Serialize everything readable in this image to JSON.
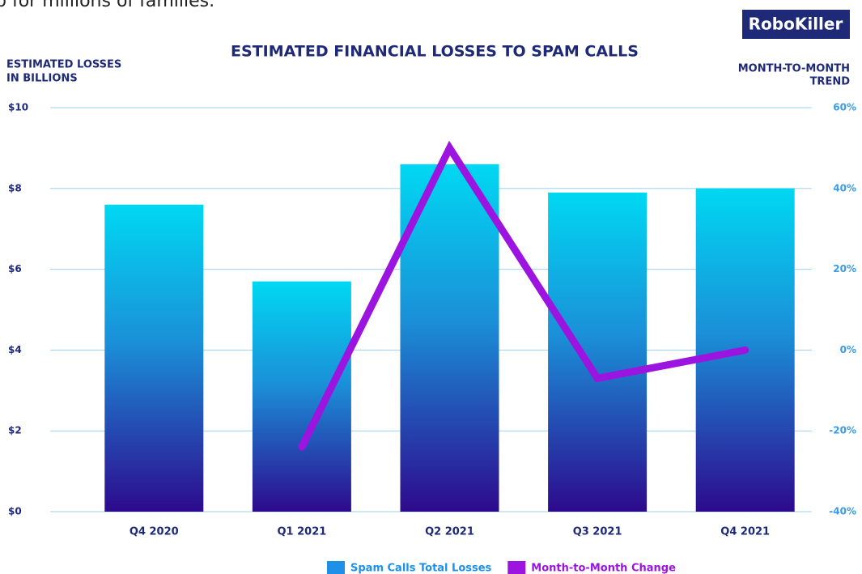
{
  "chart_data": {
    "type": "bar-line",
    "annotation": "p for millions of families.",
    "brand": "RoboKiller",
    "title": "ESTIMATED FINANCIAL LOSSES TO SPAM CALLS",
    "y_label": [
      "ESTIMATED LOSSES",
      "IN BILLIONS"
    ],
    "y2_label": [
      "MONTH-TO-MONTH",
      "TREND"
    ],
    "categories": [
      "Q4 2020",
      "Q1 2021",
      "Q2 2021",
      "Q3 2021",
      "Q4 2021"
    ],
    "series": [
      {
        "name": "Spam Calls Total Losses",
        "type": "bar",
        "color": "#1e90e8",
        "values": [
          7.6,
          5.7,
          8.6,
          7.9,
          8.0
        ]
      },
      {
        "name": "Month-to-Month Change",
        "type": "line",
        "color": "#9c14e0",
        "axis": "y2",
        "values": [
          null,
          -24,
          50,
          -7,
          0
        ]
      }
    ],
    "ylim": [
      0,
      10
    ],
    "yticks": [
      {
        "value": 0,
        "label": "$0"
      },
      {
        "value": 2,
        "label": "$2"
      },
      {
        "value": 4,
        "label": "$4"
      },
      {
        "value": 6,
        "label": "$6"
      },
      {
        "value": 8,
        "label": "$8"
      },
      {
        "value": 10,
        "label": "$10"
      }
    ],
    "y2lim": [
      -40,
      60
    ],
    "y2ticks": [
      {
        "value": -40,
        "label": "-40%"
      },
      {
        "value": -20,
        "label": "-20%"
      },
      {
        "value": 0,
        "label": "0%"
      },
      {
        "value": 20,
        "label": "20%"
      },
      {
        "value": 40,
        "label": "40%"
      },
      {
        "value": 60,
        "label": "60%"
      }
    ],
    "grid": true,
    "legend": "bottom"
  }
}
